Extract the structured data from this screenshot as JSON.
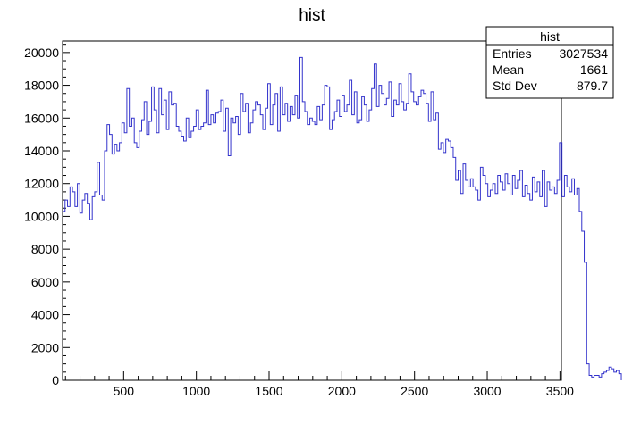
{
  "chart_data": {
    "type": "histogram",
    "title": "hist",
    "xlim": [
      80,
      3510
    ],
    "ylim": [
      0,
      20700
    ],
    "x_ticks": [
      500,
      1000,
      1500,
      2000,
      2500,
      3000,
      3500
    ],
    "y_ticks": [
      0,
      2000,
      4000,
      6000,
      8000,
      10000,
      12000,
      14000,
      16000,
      18000,
      20000
    ],
    "line_color": "#3333cc",
    "stats_box": {
      "title": "hist",
      "rows": [
        {
          "label": "Entries",
          "value": "3027534"
        },
        {
          "label": "Mean",
          "value": "1661"
        },
        {
          "label": "Std Dev",
          "value": "879.7"
        }
      ]
    },
    "bin_edges_start": 80,
    "bin_width": 17,
    "values": [
      10300,
      11000,
      10600,
      11800,
      11500,
      10600,
      12000,
      10200,
      11000,
      11400,
      10800,
      9800,
      11200,
      11500,
      13300,
      11300,
      11000,
      14000,
      15600,
      15000,
      13800,
      14400,
      14000,
      14500,
      15700,
      15100,
      17800,
      15500,
      16000,
      14500,
      14200,
      15200,
      15900,
      17000,
      15000,
      15800,
      17900,
      16500,
      15100,
      17800,
      16200,
      17100,
      15300,
      17600,
      16800,
      16900,
      15500,
      15200,
      14900,
      14600,
      16000,
      14800,
      15200,
      15500,
      16500,
      15300,
      15500,
      15700,
      17700,
      15600,
      16200,
      15700,
      16300,
      16400,
      17100,
      15200,
      16600,
      13700,
      16000,
      15700,
      16100,
      15000,
      17500,
      16400,
      16900,
      15100,
      15700,
      16500,
      17000,
      16800,
      16200,
      15300,
      16600,
      18100,
      15600,
      16800,
      17500,
      15200,
      17900,
      16200,
      16900,
      15800,
      16700,
      16200,
      17400,
      16000,
      19700,
      17000,
      16400,
      15600,
      16000,
      15800,
      15600,
      16700,
      15900,
      16800,
      18000,
      17900,
      15300,
      15900,
      16400,
      17100,
      16100,
      17400,
      16400,
      16800,
      18300,
      16200,
      17600,
      15700,
      15900,
      17300,
      16800,
      15800,
      16500,
      17800,
      19300,
      16700,
      18000,
      17500,
      16800,
      17200,
      18200,
      16100,
      17100,
      16800,
      18100,
      17000,
      16500,
      16900,
      18700,
      17600,
      17000,
      16800,
      17300,
      17700,
      17500,
      16900,
      15800,
      17600,
      15900,
      16300,
      14100,
      14500,
      13900,
      14700,
      14600,
      14200,
      13600,
      12200,
      12800,
      11400,
      13200,
      12200,
      11800,
      12300,
      11800,
      11600,
      11000,
      13000,
      12500,
      12000,
      11200,
      11600,
      12000,
      11400,
      12500,
      12100,
      11600,
      12600,
      12000,
      11300,
      12500,
      11700,
      12200,
      12800,
      11200,
      11900,
      11400,
      11000,
      12400,
      11500,
      12100,
      11200,
      12800,
      10600,
      12100,
      11600,
      11800,
      11400,
      12200,
      14500,
      11200,
      12500,
      11800,
      11500,
      12300,
      11300,
      11700,
      10300,
      9100,
      7200,
      1000,
      300,
      200,
      300,
      300,
      200,
      400,
      500,
      600,
      800,
      700,
      500,
      600,
      400
    ]
  }
}
